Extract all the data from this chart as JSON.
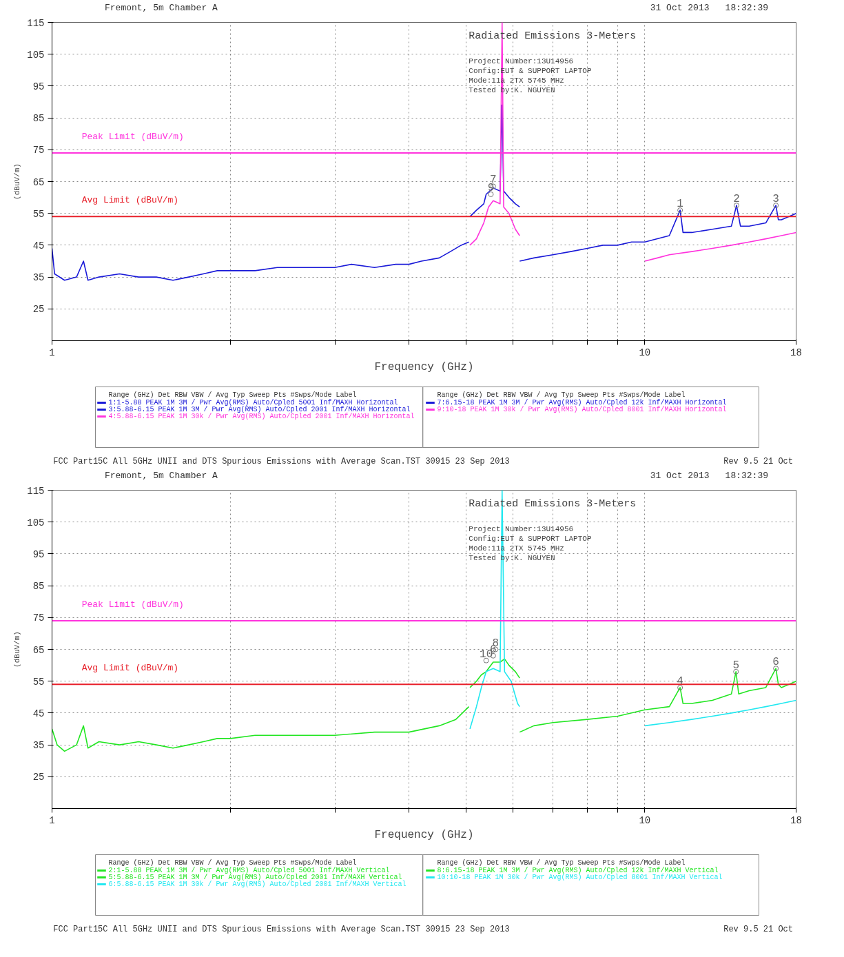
{
  "chart_data": [
    {
      "type": "line",
      "title": "Fremont, 5m Chamber A",
      "xlabel": "Frequency (GHz)",
      "ylabel": "(dBuV/m)",
      "log": "x",
      "xlim": [
        1,
        18
      ],
      "xticks": [
        1,
        {
          "value": 2,
          "label": null
        },
        {
          "value": 3,
          "label": null
        },
        {
          "value": 4,
          "label": null
        },
        {
          "value": 5,
          "label": null
        },
        {
          "value": 6,
          "label": null
        },
        {
          "value": 7,
          "label": null
        },
        {
          "value": 8,
          "label": null
        },
        {
          "value": 9,
          "label": null
        },
        10,
        18
      ],
      "ylim": [
        15,
        115
      ],
      "yticks": [
        25,
        35,
        45,
        55,
        65,
        75,
        85,
        95,
        105,
        115
      ],
      "grid": true,
      "legend": "bottom",
      "line_style": "solid",
      "legend_title": "Range (GHz)  Det  RBW  VBW / Avg Typ  Sweep  Pts  #Swps/Mode  Label",
      "series": [
        {
          "name": "1:1-5.88  PEAK  1M  3M / Pwr Avg(RMS)  Auto/Cpled  5001  Inf/MAXH  Horizontal",
          "color": "#1a1ad8",
          "x": [
            1.0,
            1.01,
            1.05,
            1.1,
            1.13,
            1.15,
            1.2,
            1.3,
            1.4,
            1.5,
            1.6,
            1.7,
            1.8,
            1.9,
            2.0,
            2.2,
            2.4,
            2.6,
            2.8,
            3.0,
            3.2,
            3.5,
            3.8,
            4.0,
            4.2,
            4.5,
            4.7,
            4.9,
            5.05
          ],
          "values": [
            44,
            36,
            34,
            35,
            40,
            34,
            35,
            36,
            35,
            35,
            34,
            35,
            36,
            37,
            37,
            37,
            38,
            38,
            38,
            38,
            39,
            38,
            39,
            39,
            40,
            41,
            43,
            45,
            46
          ]
        },
        {
          "name": "3:5.88-6.15  PEAK  1M  3M / Pwr Avg(RMS)  Auto/Cpled  2001  Inf/MAXH  Horizontal",
          "color": "#1a1ad8",
          "x": [
            5.07,
            5.2,
            5.35,
            5.4,
            5.55,
            5.7,
            5.745,
            5.78,
            5.9,
            6.05,
            6.15
          ],
          "values": [
            54,
            56,
            58,
            61,
            63,
            62,
            89,
            62,
            60,
            58,
            57
          ]
        },
        {
          "name": "4:5.88-6.15  PEAK  1M  30k / Pwr Avg(RMS)  Auto/Cpled  2001  Inf/MAXH  Horizontal",
          "color": "#ff33dd",
          "x": [
            5.07,
            5.2,
            5.35,
            5.45,
            5.55,
            5.7,
            5.745,
            5.78,
            5.9,
            6.05,
            6.15
          ],
          "values": [
            45,
            47,
            52,
            57,
            59,
            58,
            115,
            57,
            55,
            50,
            48
          ]
        },
        {
          "name": "7:6.15-18  PEAK  1M  3M / Pwr Avg(RMS)  Auto/Cpled  12k  Inf/MAXH  Horizontal",
          "color": "#1a1ad8",
          "x": [
            6.15,
            6.5,
            7,
            7.5,
            8,
            8.5,
            9,
            9.5,
            10,
            11,
            11.47,
            11.6,
            12,
            13,
            14,
            14.28,
            14.5,
            15,
            16,
            16.64,
            16.8,
            17,
            18
          ],
          "values": [
            40,
            41,
            42,
            43,
            44,
            45,
            45,
            46,
            46,
            48,
            56,
            49,
            49,
            50,
            51,
            57.5,
            51,
            51,
            52,
            57.5,
            53,
            53,
            55
          ]
        },
        {
          "name": "9:10-18  PEAK  1M  30k / Pwr Avg(RMS)  Auto/Cpled  8001  Inf/MAXH  Horizontal",
          "color": "#ff33dd",
          "x": [
            10,
            10.5,
            11,
            12,
            13,
            14,
            15,
            16,
            17,
            18
          ],
          "values": [
            40,
            41,
            42,
            43,
            44,
            45,
            46,
            47,
            48,
            49
          ]
        }
      ],
      "ref_lines": [
        {
          "axis": "y",
          "value": 74,
          "label": "Peak Limit (dBuV/m)",
          "color": "#ff33dd"
        },
        {
          "axis": "y",
          "value": 54,
          "label": "Avg Limit (dBuV/m)",
          "color": "#e8202a"
        }
      ],
      "annotations": [
        "31 Oct 2013",
        "18:32:39",
        "Radiated Emissions 3-Meters",
        "Project Number:13U14956",
        "Config:EUT & SUPPORT LAPTOP",
        "Mode:11a 2TX 5745 MHz",
        "Tested by:K. NGUYEN",
        "FCC Part15C All 5GHz UNII and DTS Spurious Emissions with Average Scan.TST 30915 23 Sep 2013",
        "Rev 9.5 21 Oct",
        {
          "text": "1",
          "x": 11.47,
          "y": 56
        },
        {
          "text": "2",
          "x": 14.28,
          "y": 57.5
        },
        {
          "text": "3",
          "x": 16.64,
          "y": 57.5
        },
        {
          "text": "7",
          "x": 5.55,
          "y": 63.5
        },
        {
          "text": "9",
          "x": 5.5,
          "y": 61
        }
      ]
    },
    {
      "type": "line",
      "title": "Fremont, 5m Chamber A",
      "xlabel": "Frequency (GHz)",
      "ylabel": "(dBuV/m)",
      "log": "x",
      "xlim": [
        1,
        18
      ],
      "xticks": [
        1,
        {
          "value": 2,
          "label": null
        },
        {
          "value": 3,
          "label": null
        },
        {
          "value": 4,
          "label": null
        },
        {
          "value": 5,
          "label": null
        },
        {
          "value": 6,
          "label": null
        },
        {
          "value": 7,
          "label": null
        },
        {
          "value": 8,
          "label": null
        },
        {
          "value": 9,
          "label": null
        },
        10,
        18
      ],
      "ylim": [
        15,
        115
      ],
      "yticks": [
        25,
        35,
        45,
        55,
        65,
        75,
        85,
        95,
        105,
        115
      ],
      "grid": true,
      "legend": "bottom",
      "line_style": "solid",
      "legend_title": "Range (GHz)  Det  RBW  VBW / Avg Typ  Sweep  Pts  #Swps/Mode  Label",
      "series": [
        {
          "name": "2:1-5.88  PEAK  1M  3M / Pwr Avg(RMS)  Auto/Cpled  5001  Inf/MAXH  Vertical",
          "color": "#22e622",
          "x": [
            1.0,
            1.02,
            1.05,
            1.1,
            1.13,
            1.15,
            1.2,
            1.3,
            1.4,
            1.5,
            1.6,
            1.7,
            1.8,
            1.9,
            2.0,
            2.2,
            2.5,
            2.8,
            3.0,
            3.5,
            4.0,
            4.5,
            4.8,
            5.05
          ],
          "values": [
            40,
            35,
            33,
            35,
            41,
            34,
            36,
            35,
            36,
            35,
            34,
            35,
            36,
            37,
            37,
            38,
            38,
            38,
            38,
            39,
            39,
            41,
            43,
            47
          ]
        },
        {
          "name": "5:5.88-6.15  PEAK  1M  3M / Pwr Avg(RMS)  Auto/Cpled  2001  Inf/MAXH  Vertical",
          "color": "#22e622",
          "x": [
            5.07,
            5.2,
            5.3,
            5.4,
            5.55,
            5.7,
            5.8,
            5.9,
            6.05,
            6.15
          ],
          "values": [
            53,
            55,
            57,
            58,
            61,
            61,
            62,
            60,
            58,
            56
          ]
        },
        {
          "name": "6:5.88-6.15  PEAK  1M  30k / Pwr Avg(RMS)  Auto/Cpled  2001  Inf/MAXH  Vertical",
          "color": "#22e8f0",
          "x": [
            5.07,
            5.2,
            5.3,
            5.4,
            5.55,
            5.7,
            5.745,
            5.8,
            5.95,
            6.1,
            6.15
          ],
          "values": [
            40,
            47,
            53,
            58,
            59,
            58,
            115,
            58,
            55,
            48,
            47
          ]
        },
        {
          "name": "8:6.15-18  PEAK  1M  3M / Pwr Avg(RMS)  Auto/Cpled  12k  Inf/MAXH  Vertical",
          "color": "#22e622",
          "x": [
            6.15,
            6.5,
            7,
            8,
            9,
            10,
            11,
            11.47,
            11.6,
            12,
            13,
            14,
            14.25,
            14.4,
            15,
            16,
            16.64,
            16.8,
            17,
            18
          ],
          "values": [
            39,
            41,
            42,
            43,
            44,
            46,
            47,
            53,
            48,
            48,
            49,
            51,
            58,
            51,
            52,
            53,
            59,
            54,
            53,
            55
          ]
        },
        {
          "name": "10:10-18  PEAK  1M  30k / Pwr Avg(RMS)  Auto/Cpled  8001  Inf/MAXH  Vertical",
          "color": "#22e8f0",
          "x": [
            10,
            11,
            12,
            13,
            14,
            15,
            16,
            17,
            18
          ],
          "values": [
            41,
            42,
            43,
            44,
            45,
            46,
            47,
            48,
            49
          ]
        }
      ],
      "ref_lines": [
        {
          "axis": "y",
          "value": 74,
          "label": "Peak Limit (dBuV/m)",
          "color": "#ff33dd"
        },
        {
          "axis": "y",
          "value": 54,
          "label": "Avg Limit (dBuV/m)",
          "color": "#e8202a"
        }
      ],
      "annotations": [
        "31 Oct 2013",
        "18:32:39",
        "Radiated Emissions 3-Meters",
        "Project Number:13U14956",
        "Config:EUT & SUPPORT LAPTOP",
        "Mode:11a 2TX 5745 MHz",
        "Tested by:K. NGUYEN",
        "FCC Part15C All 5GHz UNII and DTS Spurious Emissions with Average Scan.TST 30915 23 Sep 2013",
        "Rev 9.5 21 Oct",
        {
          "text": "10",
          "x": 5.4,
          "y": 61.5
        },
        {
          "text": "6",
          "x": 5.55,
          "y": 63
        },
        {
          "text": "8",
          "x": 5.6,
          "y": 65
        },
        {
          "text": "4",
          "x": 11.47,
          "y": 53
        },
        {
          "text": "5",
          "x": 14.25,
          "y": 58
        },
        {
          "text": "6",
          "x": 16.64,
          "y": 59
        }
      ]
    }
  ]
}
